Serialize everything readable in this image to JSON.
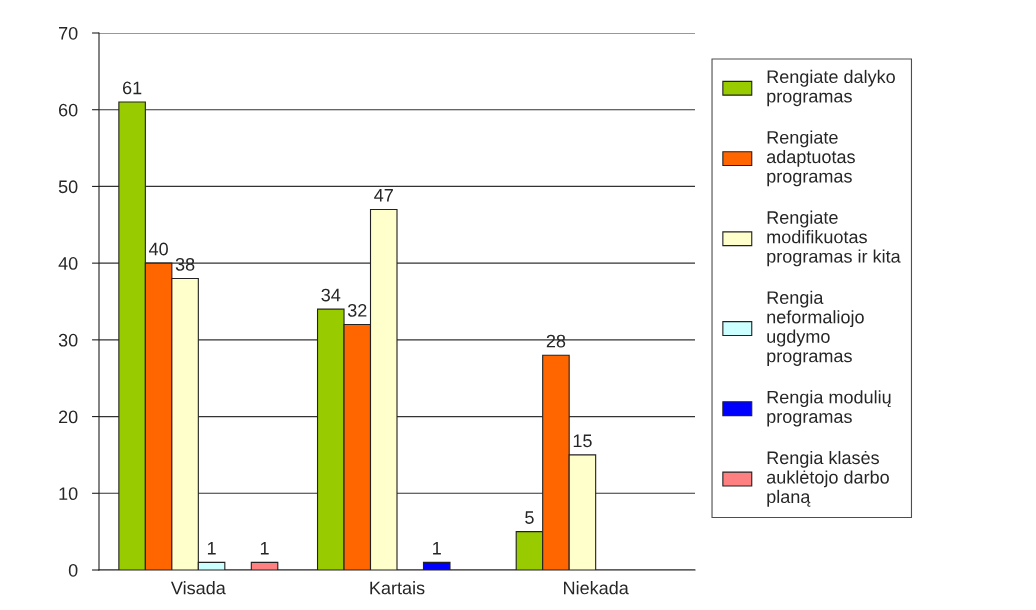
{
  "chart_data": {
    "type": "bar",
    "categories": [
      "Visada",
      "Kartais",
      "Niekada"
    ],
    "series": [
      {
        "name": "Rengiate dalyko\nprogramas",
        "color": "#99cc00",
        "values": [
          61,
          34,
          5
        ]
      },
      {
        "name": "Rengiate\nadaptuotas\nprogramas",
        "color": "#ff6600",
        "values": [
          40,
          32,
          28
        ]
      },
      {
        "name": "Rengiate\nmodifikuotas\nprogramas ir kita",
        "color": "#ffffcc",
        "values": [
          38,
          47,
          15
        ]
      },
      {
        "name": "Rengia\nneformaliojo\nugdymo\nprogramas",
        "color": "#ccffff",
        "values": [
          1,
          null,
          null
        ]
      },
      {
        "name": "Rengia modulių\nprogramas",
        "color": "#0000ff",
        "values": [
          null,
          1,
          null
        ]
      },
      {
        "name": "Rengia klasės\nauklėtojo darbo\nplaną",
        "color": "#ff8080",
        "values": [
          1,
          null,
          null
        ]
      }
    ],
    "ylim": [
      0,
      70
    ],
    "yticks": [
      0,
      10,
      20,
      30,
      40,
      50,
      60,
      70
    ],
    "grid": "y",
    "legend": "right",
    "data_labels": true
  }
}
